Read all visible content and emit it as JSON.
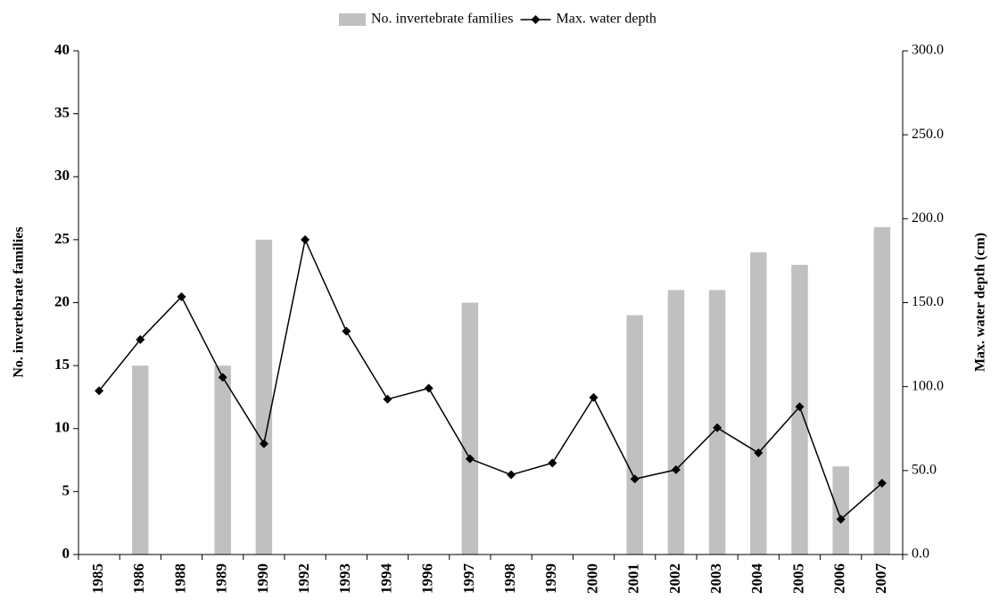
{
  "chart_data": {
    "type": "bar_line",
    "categories": [
      "1985",
      "1986",
      "1988",
      "1989",
      "1990",
      "1992",
      "1993",
      "1994",
      "1996",
      "1997",
      "1998",
      "1999",
      "2000",
      "2001",
      "2002",
      "2003",
      "2004",
      "2005",
      "2006",
      "2007"
    ],
    "series": [
      {
        "name": "No. invertebrate families",
        "color": "#c0c0c0",
        "type": "bar",
        "axis": "y",
        "values": [
          null,
          15,
          null,
          15,
          25,
          null,
          null,
          null,
          null,
          20,
          null,
          null,
          null,
          19,
          21,
          21,
          24,
          23,
          7,
          26
        ]
      },
      {
        "name": "Max. water depth",
        "color": "#000000",
        "type": "line",
        "axis": "y2",
        "values": [
          97.5,
          128,
          153.5,
          105.5,
          66,
          187.5,
          133,
          92.5,
          99,
          57,
          47.5,
          54.5,
          93.5,
          45,
          50.5,
          75.5,
          60.5,
          88,
          21,
          42.5
        ]
      }
    ],
    "ylabel": "No. invertebrate families",
    "y2label": "Max. water depth (cm)",
    "ylim": [
      0,
      40
    ],
    "yticks": [
      0,
      5,
      10,
      15,
      20,
      25,
      30,
      35,
      40
    ],
    "y2lim": [
      0,
      300
    ],
    "y2ticks": [
      {
        "value": 0,
        "label": "0.0"
      },
      {
        "value": 50,
        "label": "50.0"
      },
      {
        "value": 100,
        "label": "100.0"
      },
      {
        "value": 150,
        "label": "150.0"
      },
      {
        "value": 200,
        "label": "200.0"
      },
      {
        "value": 250,
        "label": "250.0"
      },
      {
        "value": 300,
        "label": "300.0"
      }
    ],
    "legend": "top"
  }
}
